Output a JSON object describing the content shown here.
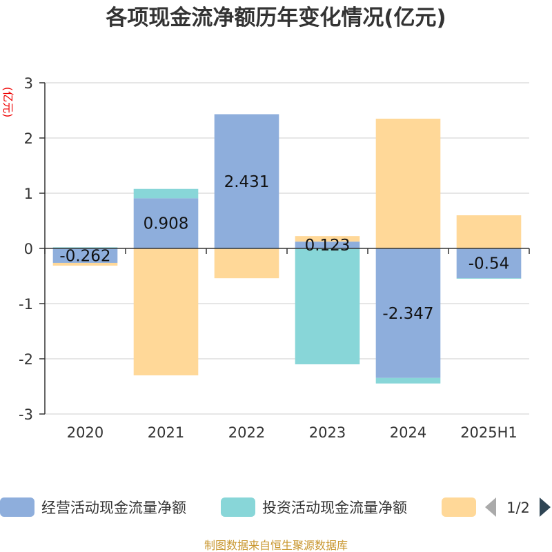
{
  "chart_data": {
    "type": "bar",
    "stacked": true,
    "title": "各项现金流净额历年变化情况(亿元)",
    "ylabel": "(亿元)",
    "categories": [
      "2020",
      "2021",
      "2022",
      "2023",
      "2024",
      "2025H1"
    ],
    "ylim": [
      -3,
      3
    ],
    "yticks": [
      -3,
      -2,
      -1,
      0,
      1,
      2,
      3
    ],
    "grid": true,
    "series": [
      {
        "name": "经营活动现金流量净额",
        "color": "#8eaedc",
        "values": [
          -0.262,
          0.908,
          2.431,
          0.123,
          -2.347,
          -0.54
        ],
        "labels": [
          "-0.262",
          "0.908",
          "2.431",
          "0.123",
          "-2.347",
          "-0.54"
        ]
      },
      {
        "name": "投资活动现金流量净额",
        "color": "#88d6d8",
        "values": [
          0.02,
          0.17,
          -0.01,
          -2.1,
          -0.1,
          -0.01
        ]
      },
      {
        "name": "",
        "color": "#ffd898",
        "values": [
          -0.05,
          -2.3,
          -0.53,
          0.1,
          2.35,
          0.6
        ]
      }
    ],
    "legend": {
      "position": "bottom",
      "page": "1/2"
    },
    "source": "制图数据来自恒生聚源数据库"
  }
}
